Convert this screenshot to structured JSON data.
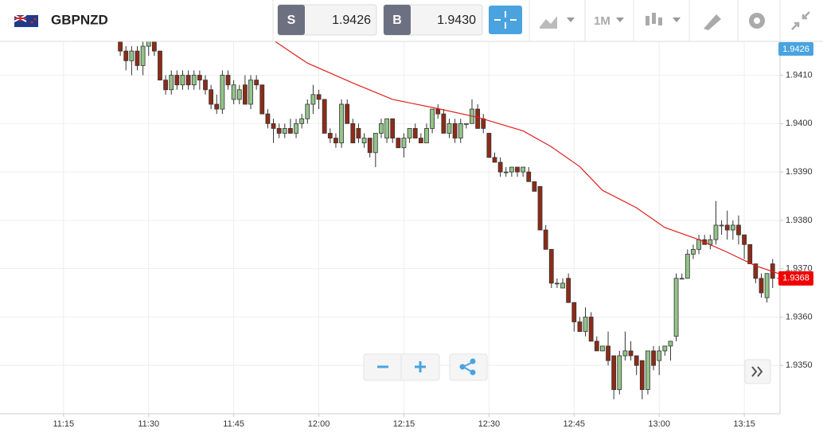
{
  "toolbar": {
    "symbol": "GBPNZD",
    "sell_label": "S",
    "sell_price": "1.9426",
    "buy_label": "B",
    "buy_price": "1.9430",
    "timeframe": "1M"
  },
  "chart_data": {
    "type": "candlestick",
    "up_color": "#93c489",
    "down_color": "#8e2b17",
    "xlim": [
      663.8,
      801.3
    ],
    "xticks": [
      {
        "value": 675,
        "label": "11:15"
      },
      {
        "value": 690,
        "label": "11:30"
      },
      {
        "value": 705,
        "label": "11:45"
      },
      {
        "value": 720,
        "label": "12:00"
      },
      {
        "value": 735,
        "label": "12:15"
      },
      {
        "value": 750,
        "label": "12:30"
      },
      {
        "value": 765,
        "label": "12:45"
      },
      {
        "value": 780,
        "label": "13:00"
      },
      {
        "value": 795,
        "label": "13:15"
      }
    ],
    "ylim": [
      1.934,
      1.9417
    ],
    "yticks": [
      {
        "value": 1.935,
        "label": "1.9350"
      },
      {
        "value": 1.936,
        "label": "1.9360"
      },
      {
        "value": 1.937,
        "label": "1.9370"
      },
      {
        "value": 1.938,
        "label": "1.9380"
      },
      {
        "value": 1.939,
        "label": "1.9390"
      },
      {
        "value": 1.94,
        "label": "1.9400"
      },
      {
        "value": 1.941,
        "label": "1.9410"
      }
    ],
    "grid": true,
    "last_price": {
      "value": 1.9368,
      "label": "1.9368",
      "color": "#f00000"
    },
    "x": [
      685,
      686,
      687,
      688,
      689,
      690,
      691,
      692,
      693,
      694,
      695,
      696,
      697,
      698,
      699,
      700,
      701,
      702,
      703,
      704,
      705,
      706,
      707,
      708,
      709,
      710,
      711,
      712,
      713,
      714,
      715,
      716,
      717,
      718,
      719,
      720,
      721,
      722,
      723,
      724,
      725,
      726,
      727,
      728,
      729,
      730,
      731,
      732,
      733,
      734,
      735,
      736,
      737,
      738,
      739,
      740,
      741,
      742,
      743,
      744,
      745,
      746,
      747,
      748,
      749,
      750,
      751,
      752,
      753,
      754,
      755,
      756,
      757,
      758,
      759,
      760,
      761,
      762,
      763,
      764,
      765,
      766,
      767,
      768,
      769,
      770,
      771,
      772,
      773,
      774,
      775,
      776,
      777,
      778,
      779,
      780,
      781,
      782,
      783,
      784,
      785,
      786,
      787,
      788,
      789,
      790,
      791,
      792,
      793,
      794,
      795,
      796,
      797,
      798,
      799,
      800
    ],
    "open": [
      1.9418,
      1.9415,
      1.9413,
      1.9415,
      1.9412,
      1.9416,
      1.9417,
      1.9415,
      1.9409,
      1.9407,
      1.941,
      1.9408,
      1.941,
      1.9408,
      1.941,
      1.9409,
      1.9407,
      1.9404,
      1.9403,
      1.941,
      1.9405,
      1.9405,
      1.9408,
      1.9404,
      1.9409,
      1.9408,
      1.9402,
      1.94,
      1.9399,
      1.9398,
      1.9399,
      1.9398,
      1.94,
      1.9401,
      1.9404,
      1.9406,
      1.9405,
      1.9398,
      1.9397,
      1.9396,
      1.9404,
      1.94,
      1.9399,
      1.9396,
      1.9397,
      1.9394,
      1.9398,
      1.9397,
      1.9401,
      1.9397,
      1.9395,
      1.9397,
      1.9399,
      1.9397,
      1.9396,
      1.9399,
      1.9403,
      1.9402,
      1.9398,
      1.94,
      1.9397,
      1.94,
      1.94,
      1.9403,
      1.9401,
      1.9398,
      1.9393,
      1.9392,
      1.939,
      1.939,
      1.9391,
      1.939,
      1.939,
      1.9388,
      1.9387,
      1.9378,
      1.9374,
      1.9367,
      1.9366,
      1.9368,
      1.9363,
      1.9359,
      1.9357,
      1.936,
      1.9355,
      1.9353,
      1.9354,
      1.9352,
      1.9345,
      1.9352,
      1.9353,
      1.9352,
      1.9351,
      1.9345,
      1.9353,
      1.9351,
      1.9353,
      1.9354,
      1.9356,
      1.9368,
      1.9368,
      1.9373,
      1.9374,
      1.9376,
      1.9375,
      1.9376,
      1.9379,
      1.9379,
      1.9378,
      1.9379,
      1.9377,
      1.9375,
      1.9371,
      1.9368,
      1.9364,
      1.9371
    ],
    "high": [
      1.9419,
      1.9416,
      1.9416,
      1.9416,
      1.9417,
      1.9418,
      1.9418,
      1.9415,
      1.941,
      1.9411,
      1.9411,
      1.9411,
      1.9411,
      1.9411,
      1.9411,
      1.941,
      1.9408,
      1.9406,
      1.9411,
      1.9411,
      1.9409,
      1.9408,
      1.941,
      1.941,
      1.941,
      1.9408,
      1.9403,
      1.9401,
      1.94,
      1.94,
      1.9401,
      1.9401,
      1.9402,
      1.9405,
      1.9408,
      1.9407,
      1.9405,
      1.9399,
      1.9398,
      1.9405,
      1.9405,
      1.9401,
      1.94,
      1.9398,
      1.9397,
      1.9398,
      1.9401,
      1.9401,
      1.9401,
      1.9397,
      1.9398,
      1.9399,
      1.94,
      1.9398,
      1.94,
      1.9403,
      1.9404,
      1.9403,
      1.9401,
      1.9401,
      1.9401,
      1.94,
      1.9405,
      1.9404,
      1.9402,
      1.9398,
      1.9394,
      1.9393,
      1.9391,
      1.9391,
      1.9391,
      1.9391,
      1.9391,
      1.9388,
      1.9387,
      1.9379,
      1.9374,
      1.9368,
      1.9368,
      1.9369,
      1.9363,
      1.936,
      1.9362,
      1.9361,
      1.9356,
      1.9354,
      1.9357,
      1.9352,
      1.9353,
      1.9357,
      1.9355,
      1.9352,
      1.9351,
      1.9353,
      1.9354,
      1.9354,
      1.9354,
      1.9355,
      1.9369,
      1.9369,
      1.9374,
      1.9375,
      1.9377,
      1.9377,
      1.9377,
      1.9384,
      1.938,
      1.9382,
      1.938,
      1.9381,
      1.9377,
      1.9375,
      1.9371,
      1.9369,
      1.9369,
      1.9372
    ],
    "low": [
      1.9414,
      1.9411,
      1.941,
      1.9411,
      1.941,
      1.9414,
      1.9414,
      1.9409,
      1.9406,
      1.9406,
      1.9407,
      1.9407,
      1.9407,
      1.9407,
      1.9407,
      1.9406,
      1.9403,
      1.9402,
      1.9402,
      1.9407,
      1.9404,
      1.9404,
      1.9404,
      1.9403,
      1.9407,
      1.9402,
      1.9399,
      1.9396,
      1.9397,
      1.9397,
      1.9398,
      1.9397,
      1.9399,
      1.94,
      1.9402,
      1.9403,
      1.9398,
      1.9396,
      1.9395,
      1.9395,
      1.94,
      1.9396,
      1.9396,
      1.9395,
      1.9393,
      1.9391,
      1.9397,
      1.9396,
      1.9396,
      1.9395,
      1.9393,
      1.9396,
      1.9397,
      1.9396,
      1.9396,
      1.9398,
      1.9401,
      1.9398,
      1.9397,
      1.9396,
      1.9396,
      1.9399,
      1.94,
      1.9399,
      1.9398,
      1.9393,
      1.9392,
      1.9389,
      1.9389,
      1.9389,
      1.9389,
      1.9389,
      1.9388,
      1.9386,
      1.9378,
      1.9374,
      1.9366,
      1.9366,
      1.9366,
      1.9363,
      1.9357,
      1.9357,
      1.9356,
      1.9355,
      1.9353,
      1.9353,
      1.935,
      1.9343,
      1.9344,
      1.9351,
      1.9351,
      1.9348,
      1.9343,
      1.9344,
      1.9349,
      1.9348,
      1.9352,
      1.9351,
      1.9355,
      1.9368,
      1.9368,
      1.9372,
      1.9373,
      1.9375,
      1.9374,
      1.9375,
      1.9377,
      1.9376,
      1.9376,
      1.9375,
      1.9372,
      1.9371,
      1.9367,
      1.9364,
      1.9363,
      1.9366
    ],
    "close": [
      1.9415,
      1.9413,
      1.9415,
      1.9412,
      1.9416,
      1.9417,
      1.9415,
      1.9409,
      1.9407,
      1.941,
      1.9408,
      1.941,
      1.9408,
      1.941,
      1.9409,
      1.9407,
      1.9404,
      1.9403,
      1.941,
      1.9408,
      1.9408,
      1.9407,
      1.9404,
      1.9409,
      1.9408,
      1.9402,
      1.94,
      1.9399,
      1.9398,
      1.9399,
      1.9398,
      1.94,
      1.9401,
      1.9404,
      1.9406,
      1.9405,
      1.9398,
      1.9397,
      1.9396,
      1.9404,
      1.94,
      1.9396,
      1.9397,
      1.9397,
      1.9394,
      1.9398,
      1.94,
      1.9401,
      1.9397,
      1.9395,
      1.9397,
      1.9399,
      1.9397,
      1.9396,
      1.9399,
      1.9403,
      1.9402,
      1.9398,
      1.94,
      1.9397,
      1.94,
      1.94,
      1.9403,
      1.9399,
      1.9399,
      1.9393,
      1.9392,
      1.939,
      1.939,
      1.9391,
      1.939,
      1.9391,
      1.9388,
      1.9386,
      1.9378,
      1.9374,
      1.9367,
      1.9367,
      1.9367,
      1.9363,
      1.9359,
      1.9357,
      1.936,
      1.9355,
      1.9353,
      1.9354,
      1.9351,
      1.9345,
      1.9352,
      1.9353,
      1.9352,
      1.935,
      1.9345,
      1.9353,
      1.935,
      1.9353,
      1.9354,
      1.9355,
      1.9368,
      1.9368,
      1.9373,
      1.9374,
      1.9376,
      1.9375,
      1.9376,
      1.9379,
      1.9379,
      1.9378,
      1.9379,
      1.9377,
      1.9375,
      1.9371,
      1.9368,
      1.9365,
      1.9369,
      1.9368
    ],
    "moving_average": {
      "color": "#e02020",
      "x": [
        711,
        718,
        726,
        733,
        741,
        748,
        756,
        761,
        766,
        770,
        776,
        781,
        787,
        792,
        797,
        801
      ],
      "values": [
        1.9418,
        1.94125,
        1.94084,
        1.9405,
        1.94031,
        1.94013,
        1.93985,
        1.93952,
        1.93911,
        1.93862,
        1.93826,
        1.93785,
        1.9376,
        1.93734,
        1.93706,
        1.9369
      ]
    }
  }
}
